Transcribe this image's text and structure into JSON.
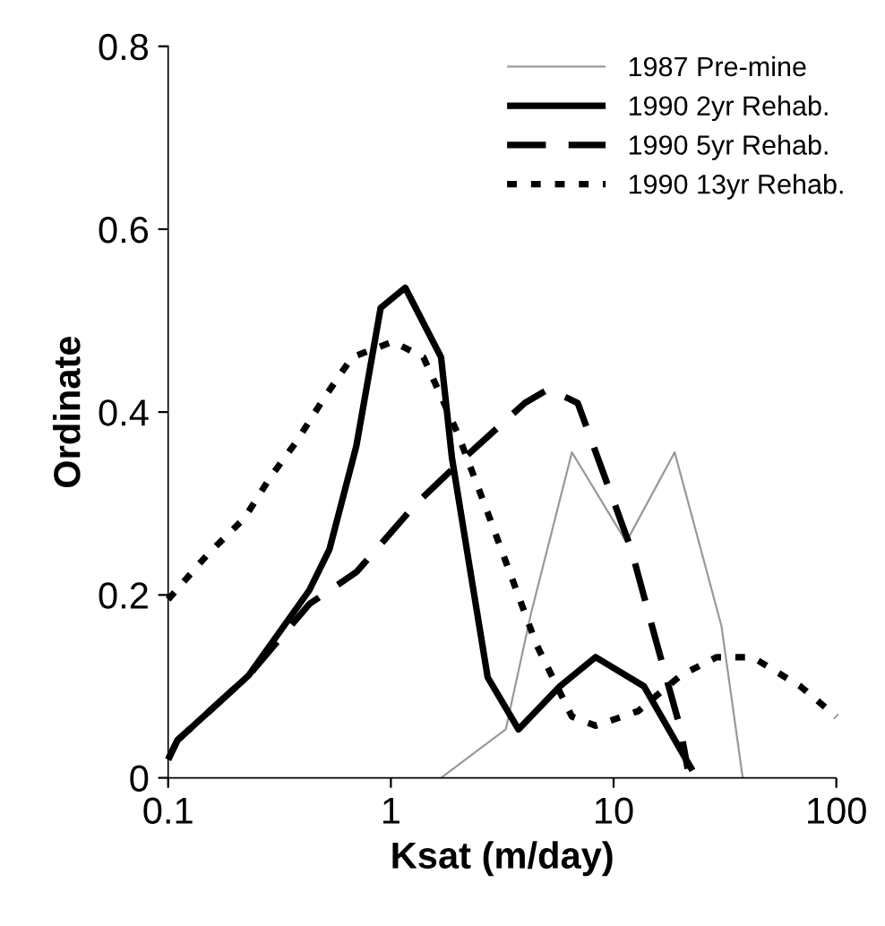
{
  "chart_data": {
    "type": "line",
    "xlabel": "Ksat (m/day)",
    "ylabel": "Ordinate",
    "log": "x",
    "xlim": [
      0.1,
      100
    ],
    "ylim": [
      0,
      0.8
    ],
    "xticks": [
      0.1,
      1,
      10,
      100
    ],
    "yticks": [
      0,
      0.2,
      0.4,
      0.6,
      0.8
    ],
    "grid": false,
    "legend": "top right",
    "marker": "none",
    "series": [
      {
        "name": "1987 Pre-mine",
        "color": "#999999",
        "line_style": "solid",
        "x": [
          1.68,
          3.28,
          4.26,
          6.5,
          11.4,
          18.8,
          30.5,
          38
        ],
        "values": [
          0,
          0.053,
          0.18,
          0.356,
          0.258,
          0.356,
          0.166,
          0
        ]
      },
      {
        "name": "1990 2yr Rehab.",
        "color": "#000000",
        "line_style": "solid",
        "x": [
          0.1,
          0.11,
          0.23,
          0.43,
          0.53,
          0.7,
          0.9,
          1.16,
          1.68,
          1.88,
          2.26,
          2.72,
          3.74,
          5.73,
          8.3,
          13.7,
          22.6
        ],
        "values": [
          0.02,
          0.041,
          0.112,
          0.205,
          0.25,
          0.363,
          0.514,
          0.536,
          0.46,
          0.35,
          0.23,
          0.11,
          0.053,
          0.1,
          0.132,
          0.1,
          0.008
        ]
      },
      {
        "name": "1990 5yr Rehab.",
        "color": "#000000",
        "line_style": "dashed",
        "x": [
          0.1,
          0.11,
          0.23,
          0.43,
          0.7,
          1.3,
          2.14,
          4,
          5.1,
          6.9,
          12,
          15.5,
          20,
          21.5
        ],
        "values": [
          0.02,
          0.041,
          0.112,
          0.19,
          0.225,
          0.3,
          0.35,
          0.41,
          0.425,
          0.41,
          0.25,
          0.15,
          0.053,
          0.01
        ]
      },
      {
        "name": "1990 13yr Rehab.",
        "color": "#000000",
        "line_style": "dotted",
        "x": [
          0.1,
          0.15,
          0.22,
          0.29,
          0.38,
          0.5,
          0.67,
          1.02,
          1.4,
          2,
          2.72,
          3.5,
          4.5,
          6.5,
          8.3,
          12.9,
          20,
          29,
          42,
          69,
          100
        ],
        "values": [
          0.195,
          0.244,
          0.284,
          0.33,
          0.369,
          0.415,
          0.46,
          0.477,
          0.46,
          0.376,
          0.29,
          0.218,
          0.146,
          0.067,
          0.057,
          0.073,
          0.112,
          0.132,
          0.132,
          0.1,
          0.067
        ]
      }
    ]
  }
}
